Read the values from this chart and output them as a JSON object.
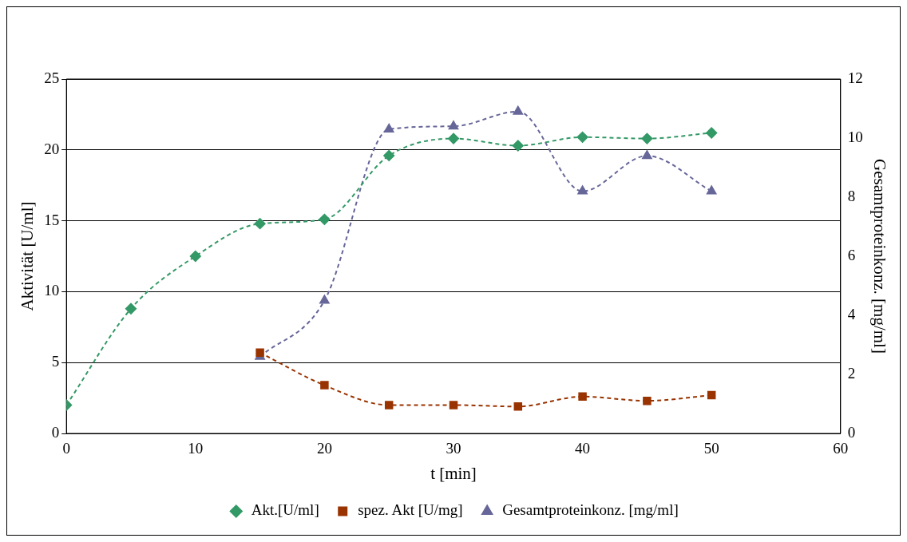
{
  "chart_data": {
    "type": "line",
    "xlabel": "t [min]",
    "ylabel": "Aktivität [U/ml]",
    "y2label": "Gesamtproteinkonz. [mg/ml]",
    "xlim": [
      0,
      60
    ],
    "xticks": [
      0,
      10,
      20,
      30,
      40,
      50,
      60
    ],
    "ylim": [
      0,
      25
    ],
    "yticks": [
      0,
      5,
      10,
      15,
      20,
      25
    ],
    "y2lim": [
      0,
      12
    ],
    "y2ticks": [
      0,
      2,
      4,
      6,
      8,
      10,
      12
    ],
    "grid": "y",
    "legend": "bottom",
    "line_style": "dashed",
    "series": [
      {
        "name": "Akt.[U/ml]",
        "color": "#339966",
        "marker": "diamond",
        "x": [
          0,
          5,
          10,
          15,
          20,
          25,
          30,
          35,
          40,
          45,
          50
        ],
        "values": [
          2.0,
          8.8,
          12.5,
          14.8,
          15.1,
          19.6,
          20.8,
          20.3,
          20.9,
          20.8,
          21.2
        ]
      },
      {
        "name": "spez. Akt [U/mg]",
        "color": "#993300",
        "marker": "square",
        "x": [
          15,
          20,
          25,
          30,
          35,
          40,
          45,
          50
        ],
        "values": [
          5.7,
          3.4,
          2.0,
          2.0,
          1.9,
          2.6,
          2.3,
          2.7
        ]
      },
      {
        "name": "Gesamtproteinkonz. [mg/ml]",
        "color": "#666699",
        "marker": "triangle",
        "axis": "y2",
        "x": [
          15,
          20,
          25,
          30,
          35,
          40,
          45,
          50
        ],
        "values": [
          2.6,
          4.5,
          10.3,
          10.4,
          10.9,
          8.2,
          9.4,
          8.2
        ]
      }
    ]
  }
}
